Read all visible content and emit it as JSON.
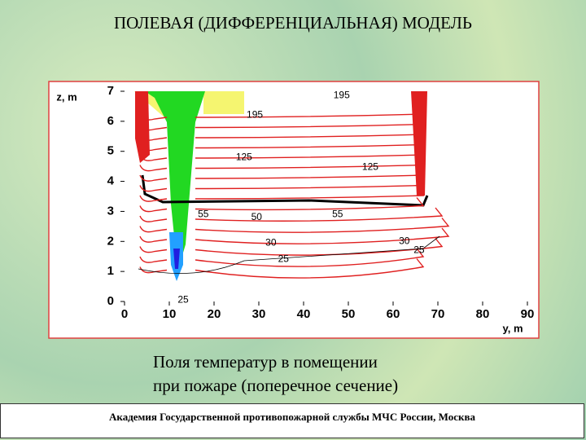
{
  "title": "ПОЛЕВАЯ (ДИФФЕРЕНЦИАЛЬНАЯ) МОДЕЛЬ",
  "chart_data": {
    "type": "contour",
    "x_label": "y, m",
    "y_label": "z, m",
    "xlim": [
      0,
      90
    ],
    "ylim": [
      0,
      7
    ],
    "xticks": [
      0,
      10,
      20,
      30,
      40,
      50,
      60,
      70,
      80,
      90
    ],
    "yticks": [
      0,
      1,
      2,
      3,
      4,
      5,
      6,
      7
    ],
    "contour_labels": [
      {
        "text": "195",
        "x": 48.5,
        "y": 6.85
      },
      {
        "text": "195",
        "x": 29.1,
        "y": 6.2
      },
      {
        "text": "125",
        "x": 26.7,
        "y": 4.8
      },
      {
        "text": "125",
        "x": 54.9,
        "y": 4.47
      },
      {
        "text": "55",
        "x": 17.6,
        "y": 2.9
      },
      {
        "text": "50",
        "x": 29.5,
        "y": 2.8
      },
      {
        "text": "55",
        "x": 47.6,
        "y": 2.9
      },
      {
        "text": "30",
        "x": 32.7,
        "y": 1.95
      },
      {
        "text": "30",
        "x": 62.5,
        "y": 2.0
      },
      {
        "text": "25",
        "x": 35.5,
        "y": 1.4
      },
      {
        "text": "25",
        "x": 65.8,
        "y": 1.7
      },
      {
        "text": "25",
        "x": 13.1,
        "y": 0.05
      }
    ]
  },
  "caption": [
    "Поля температур в помещении",
    "при пожаре (поперечное сечение)"
  ],
  "footer": "Академия Государственной противопожарной службы МЧС России, Москва"
}
